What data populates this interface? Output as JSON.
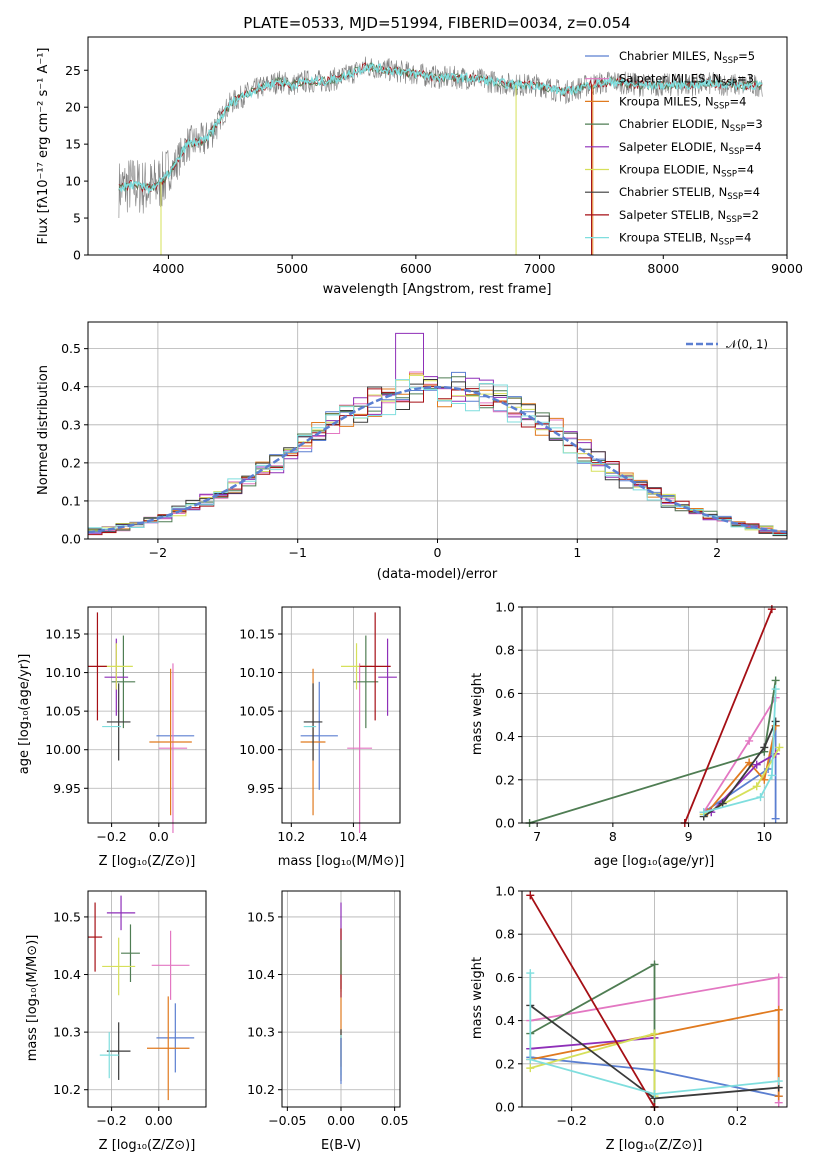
{
  "colors": {
    "chabrier_miles": "#5b7fd1",
    "salpeter_miles": "#e377c2",
    "kroupa_miles": "#e07a1f",
    "chabrier_elodie": "#4f7d53",
    "salpeter_elodie": "#8e2fb8",
    "kroupa_elodie": "#d6e05a",
    "chabrier_stelib": "#3a3a3a",
    "salpeter_stelib": "#a50f15",
    "kroupa_stelib": "#7fdede",
    "grid": "#b0b0b0"
  },
  "legend": {
    "models": [
      {
        "label": "Chabrier MILES, N",
        "sub": "SSP",
        "suffix": "=5",
        "color_key": "chabrier_miles"
      },
      {
        "label": "Salpeter MILES, N",
        "sub": "SSP",
        "suffix": "=3",
        "color_key": "salpeter_miles"
      },
      {
        "label": "Kroupa MILES, N",
        "sub": "SSP",
        "suffix": "=4",
        "color_key": "kroupa_miles"
      },
      {
        "label": "Chabrier ELODIE, N",
        "sub": "SSP",
        "suffix": "=3",
        "color_key": "chabrier_elodie"
      },
      {
        "label": "Salpeter ELODIE, N",
        "sub": "SSP",
        "suffix": "=4",
        "color_key": "salpeter_elodie"
      },
      {
        "label": "Kroupa ELODIE, N",
        "sub": "SSP",
        "suffix": "=4",
        "color_key": "kroupa_elodie"
      },
      {
        "label": "Chabrier STELIB, N",
        "sub": "SSP",
        "suffix": "=4",
        "color_key": "chabrier_stelib"
      },
      {
        "label": "Salpeter STELIB, N",
        "sub": "SSP",
        "suffix": "=2",
        "color_key": "salpeter_stelib"
      },
      {
        "label": "Kroupa STELIB, N",
        "sub": "SSP",
        "suffix": "=4",
        "color_key": "kroupa_stelib"
      }
    ],
    "normal": "𝒩(0, 1)"
  },
  "chart_data": [
    {
      "type": "line",
      "panel": "spectrum",
      "title": "PLATE=0533, MJD=51994, FIBERID=0034, z=0.054",
      "xlabel": "wavelength [Angstrom, rest frame]",
      "ylabel": "Flux [fλ10⁻¹⁷ erg cm⁻² s⁻¹ A⁻¹]",
      "xlim": [
        3350,
        9000
      ],
      "ylim": [
        0,
        29.5
      ],
      "xticks": [
        4000,
        5000,
        6000,
        7000,
        8000,
        9000
      ],
      "yticks": [
        0,
        5,
        10,
        15,
        20,
        25
      ],
      "continuum_x": [
        3600,
        3700,
        3850,
        3950,
        4050,
        4150,
        4300,
        4400,
        4500,
        4650,
        4800,
        4900,
        5000,
        5100,
        5250,
        5400,
        5600,
        5800,
        6000,
        6200,
        6400,
        6600,
        6800,
        7000,
        7200,
        7400,
        7600,
        7800,
        8000,
        8200,
        8400,
        8600,
        8800
      ],
      "continuum_y": [
        9,
        9.5,
        9,
        10,
        12,
        15,
        15.5,
        18,
        20.5,
        22,
        23,
        23.5,
        23,
        23.5,
        23.5,
        24,
        25.5,
        25,
        24.5,
        24,
        24,
        23.5,
        23,
        23,
        22,
        23,
        23.5,
        23,
        23,
        23,
        23.2,
        23,
        23
      ]
    },
    {
      "type": "bar",
      "panel": "residual-histogram",
      "xlabel": "(data-model)/error",
      "ylabel": "Normed distribution",
      "xlim": [
        -2.5,
        2.5
      ],
      "ylim": [
        0,
        0.57
      ],
      "xticks": [
        -2,
        -1,
        0,
        1,
        2
      ],
      "yticks": [
        0.0,
        0.1,
        0.2,
        0.3,
        0.4,
        0.5
      ],
      "bin_width": 0.1,
      "normal_curve": {
        "mean": 0,
        "sigma": 1
      }
    },
    {
      "type": "scatter",
      "panel": "Z-age",
      "xlabel": "Z [log₁₀(Z/Z⊙)]",
      "ylabel": "age  [log₁₀(age/yr)]",
      "xlim": [
        -0.3,
        0.2
      ],
      "ylim": [
        9.905,
        10.185
      ],
      "xticks": [
        -0.2,
        0.0
      ],
      "xticklabels": [
        "−0.2",
        "0.0"
      ],
      "yticks": [
        9.95,
        10.0,
        10.05,
        10.1,
        10.15
      ],
      "points": [
        {
          "series": "chabrier_miles",
          "x": 0.07,
          "y": 10.018,
          "xerr": 0.08,
          "yerr": 0.0
        },
        {
          "series": "salpeter_miles",
          "x": 0.06,
          "y": 10.002,
          "xerr": 0.06,
          "yerr": 0.11
        },
        {
          "series": "kroupa_miles",
          "x": 0.05,
          "y": 10.01,
          "xerr": 0.09,
          "yerr": 0.095
        },
        {
          "series": "chabrier_elodie",
          "x": -0.15,
          "y": 10.088,
          "xerr": 0.05,
          "yerr": 0.06
        },
        {
          "series": "salpeter_elodie",
          "x": -0.18,
          "y": 10.094,
          "xerr": 0.05,
          "yerr": 0.05
        },
        {
          "series": "kroupa_elodie",
          "x": -0.18,
          "y": 10.108,
          "xerr": 0.07,
          "yerr": 0.03
        },
        {
          "series": "chabrier_stelib",
          "x": -0.17,
          "y": 10.036,
          "xerr": 0.05,
          "yerr": 0.05
        },
        {
          "series": "salpeter_stelib",
          "x": -0.26,
          "y": 10.108,
          "xerr": 0.04,
          "yerr": 0.07
        },
        {
          "series": "kroupa_stelib",
          "x": -0.2,
          "y": 10.03,
          "xerr": 0.04,
          "yerr": 0.0
        }
      ]
    },
    {
      "type": "scatter",
      "panel": "mass-age",
      "xlabel": "mass [log₁₀(M/M⊙)]",
      "xlim": [
        10.17,
        10.55
      ],
      "ylim": [
        9.905,
        10.185
      ],
      "xticks": [
        10.2,
        10.4
      ],
      "xticklabels": [
        "10.2",
        "10.4"
      ],
      "yticks": [
        9.95,
        10.0,
        10.05,
        10.1,
        10.15
      ],
      "points": [
        {
          "series": "chabrier_miles",
          "x": 10.29,
          "y": 10.018,
          "xerr": 0.06,
          "yerr": 0.07
        },
        {
          "series": "salpeter_miles",
          "x": 10.42,
          "y": 10.002,
          "xerr": 0.04,
          "yerr": 0.11
        },
        {
          "series": "kroupa_miles",
          "x": 10.27,
          "y": 10.01,
          "xerr": 0.04,
          "yerr": 0.095
        },
        {
          "series": "chabrier_elodie",
          "x": 10.44,
          "y": 10.088,
          "xerr": 0.04,
          "yerr": 0.06
        },
        {
          "series": "salpeter_elodie",
          "x": 10.51,
          "y": 10.094,
          "xerr": 0.03,
          "yerr": 0.05
        },
        {
          "series": "kroupa_elodie",
          "x": 10.41,
          "y": 10.108,
          "xerr": 0.05,
          "yerr": 0.03
        },
        {
          "series": "chabrier_stelib",
          "x": 10.27,
          "y": 10.036,
          "xerr": 0.03,
          "yerr": 0.05
        },
        {
          "series": "salpeter_stelib",
          "x": 10.47,
          "y": 10.108,
          "xerr": 0.05,
          "yerr": 0.07
        },
        {
          "series": "kroupa_stelib",
          "x": 10.26,
          "y": 10.03,
          "xerr": 0.02,
          "yerr": 0.0
        }
      ]
    },
    {
      "type": "line",
      "panel": "age-weight",
      "xlabel": "age  [log₁₀(age/yr)]",
      "ylabel": "mass weight",
      "xlim": [
        6.8,
        10.3
      ],
      "ylim": [
        0,
        1.0
      ],
      "xticks": [
        7,
        8,
        9,
        10
      ],
      "yticks": [
        0.0,
        0.2,
        0.4,
        0.6,
        0.8,
        1.0
      ],
      "series": [
        {
          "name": "chabrier_miles",
          "x": [
            10.15,
            10.15,
            10.05,
            9.2
          ],
          "y": [
            0.02,
            0.45,
            0.25,
            0.05
          ]
        },
        {
          "name": "salpeter_miles",
          "x": [
            9.2,
            9.8,
            10.15
          ],
          "y": [
            0.05,
            0.38,
            0.58
          ]
        },
        {
          "name": "kroupa_miles",
          "x": [
            9.25,
            9.8,
            10.0,
            10.15
          ],
          "y": [
            0.05,
            0.28,
            0.2,
            0.45
          ]
        },
        {
          "name": "chabrier_elodie",
          "x": [
            6.9,
            10.0,
            10.15
          ],
          "y": [
            0.0,
            0.33,
            0.66
          ]
        },
        {
          "name": "salpeter_elodie",
          "x": [
            9.3,
            9.9,
            10.15
          ],
          "y": [
            0.05,
            0.27,
            0.32
          ]
        },
        {
          "name": "kroupa_elodie",
          "x": [
            9.2,
            9.9,
            10.2
          ],
          "y": [
            0.04,
            0.17,
            0.35
          ]
        },
        {
          "name": "chabrier_stelib",
          "x": [
            9.2,
            9.45,
            10.0,
            10.15
          ],
          "y": [
            0.03,
            0.09,
            0.35,
            0.47
          ]
        },
        {
          "name": "salpeter_stelib",
          "x": [
            8.95,
            10.1
          ],
          "y": [
            0.0,
            0.99
          ]
        },
        {
          "name": "kroupa_stelib",
          "x": [
            9.2,
            9.95,
            10.1,
            10.15
          ],
          "y": [
            0.05,
            0.12,
            0.22,
            0.62
          ]
        }
      ]
    },
    {
      "type": "scatter",
      "panel": "Z-mass",
      "xlabel": "Z [log₁₀(Z/Z⊙)]",
      "ylabel": "mass [log₁₀(M/M⊙)]",
      "xlim": [
        -0.3,
        0.2
      ],
      "ylim": [
        10.17,
        10.545
      ],
      "xticks": [
        -0.2,
        0.0
      ],
      "xticklabels": [
        "−0.2",
        "0.00"
      ],
      "yticks": [
        10.2,
        10.3,
        10.4,
        10.5
      ],
      "points": [
        {
          "series": "chabrier_miles",
          "x": 0.07,
          "y": 10.29,
          "xerr": 0.08,
          "yerr": 0.06
        },
        {
          "series": "salpeter_miles",
          "x": 0.05,
          "y": 10.416,
          "xerr": 0.08,
          "yerr": 0.06
        },
        {
          "series": "kroupa_miles",
          "x": 0.04,
          "y": 10.272,
          "xerr": 0.09,
          "yerr": 0.09
        },
        {
          "series": "chabrier_elodie",
          "x": -0.12,
          "y": 10.437,
          "xerr": 0.04,
          "yerr": 0.05
        },
        {
          "series": "salpeter_elodie",
          "x": -0.16,
          "y": 10.507,
          "xerr": 0.06,
          "yerr": 0.03
        },
        {
          "series": "kroupa_elodie",
          "x": -0.17,
          "y": 10.414,
          "xerr": 0.07,
          "yerr": 0.05
        },
        {
          "series": "chabrier_stelib",
          "x": -0.17,
          "y": 10.267,
          "xerr": 0.05,
          "yerr": 0.05
        },
        {
          "series": "salpeter_stelib",
          "x": -0.27,
          "y": 10.465,
          "xerr": 0.03,
          "yerr": 0.06
        },
        {
          "series": "kroupa_stelib",
          "x": -0.21,
          "y": 10.26,
          "xerr": 0.04,
          "yerr": 0.04
        }
      ]
    },
    {
      "type": "scatter",
      "panel": "EBV-mass",
      "xlabel": "E(B-V)",
      "xlim": [
        -0.055,
        0.055
      ],
      "ylim": [
        10.17,
        10.545
      ],
      "xticks": [
        -0.05,
        0.0,
        0.05
      ],
      "xticklabels": [
        "−0.05",
        "0.00",
        "0.05"
      ],
      "yticks": [
        10.2,
        10.3,
        10.4,
        10.5
      ],
      "points": [
        {
          "series": "salpeter_elodie",
          "x": 0.0,
          "y": 10.45,
          "xerr": 0.0,
          "yerr": 0.075
        },
        {
          "series": "kroupa_elodie",
          "x": 0.0,
          "y": 10.4,
          "xerr": 0.0,
          "yerr": 0.03
        },
        {
          "series": "salpeter_stelib",
          "x": 0.0,
          "y": 10.42,
          "xerr": 0.0,
          "yerr": 0.06
        },
        {
          "series": "kroupa_miles",
          "x": 0.0,
          "y": 10.3,
          "xerr": 0.0,
          "yerr": 0.06
        },
        {
          "series": "chabrier_elodie",
          "x": 0.0,
          "y": 10.43,
          "xerr": 0.0,
          "yerr": 0.03
        },
        {
          "series": "chabrier_stelib",
          "x": 0.0,
          "y": 10.26,
          "xerr": 0.0,
          "yerr": 0.045
        },
        {
          "series": "kroupa_stelib",
          "x": 0.0,
          "y": 10.26,
          "xerr": 0.0,
          "yerr": 0.035
        },
        {
          "series": "chabrier_miles",
          "x": 0.0,
          "y": 10.25,
          "xerr": 0.0,
          "yerr": 0.04
        }
      ]
    },
    {
      "type": "line",
      "panel": "Z-weight",
      "xlabel": "Z [log₁₀(Z/Z⊙)]",
      "ylabel": "mass weight",
      "xlim": [
        -0.32,
        0.32
      ],
      "ylim": [
        0,
        1.0
      ],
      "xticks": [
        -0.2,
        0.0,
        0.2
      ],
      "xticklabels": [
        "−0.2",
        "0.0",
        "0.2"
      ],
      "yticks": [
        0.0,
        0.2,
        0.4,
        0.6,
        0.8,
        1.0
      ],
      "series": [
        {
          "name": "chabrier_miles",
          "x": [
            -0.3,
            -0.3,
            0.0,
            0.3
          ],
          "y": [
            0.27,
            0.23,
            0.17,
            0.05
          ]
        },
        {
          "name": "salpeter_miles",
          "x": [
            -0.3,
            0.3,
            0.3
          ],
          "y": [
            0.4,
            0.6,
            0.02
          ]
        },
        {
          "name": "kroupa_miles",
          "x": [
            -0.3,
            0.3,
            0.3
          ],
          "y": [
            0.22,
            0.45,
            0.05
          ]
        },
        {
          "name": "chabrier_elodie",
          "x": [
            -0.3,
            0.0,
            0.0
          ],
          "y": [
            0.34,
            0.66,
            0.0
          ]
        },
        {
          "name": "salpeter_elodie",
          "x": [
            -0.3,
            0.0
          ],
          "y": [
            0.27,
            0.32
          ]
        },
        {
          "name": "kroupa_elodie",
          "x": [
            -0.3,
            0.0,
            0.0
          ],
          "y": [
            0.18,
            0.34,
            0.05
          ]
        },
        {
          "name": "chabrier_stelib",
          "x": [
            -0.3,
            0.0,
            0.3
          ],
          "y": [
            0.47,
            0.04,
            0.09
          ]
        },
        {
          "name": "salpeter_stelib",
          "x": [
            -0.3,
            0.0
          ],
          "y": [
            0.98,
            0.0
          ]
        },
        {
          "name": "kroupa_stelib",
          "x": [
            -0.3,
            -0.3,
            0.0,
            0.3
          ],
          "y": [
            0.62,
            0.22,
            0.06,
            0.12
          ]
        }
      ]
    }
  ]
}
